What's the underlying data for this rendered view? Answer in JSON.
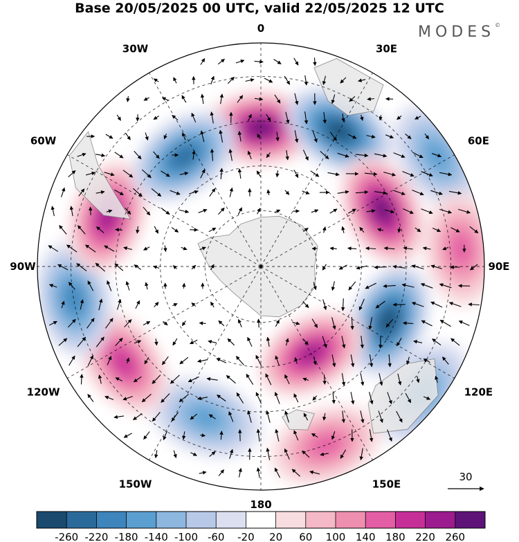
{
  "title": "Base 20/05/2025 00 UTC, valid 22/05/2025 12 UTC",
  "logo": {
    "text": "MODES",
    "mark": "©"
  },
  "map": {
    "projection": "south-polar-stereographic",
    "longitude_labels": [
      "0",
      "30E",
      "60E",
      "90E",
      "120E",
      "150E",
      "180",
      "150W",
      "120W",
      "90W",
      "60W",
      "30W"
    ],
    "anomaly_centers": [
      {
        "lon": 0,
        "ring": 0.62,
        "value": 240,
        "label": "positive"
      },
      {
        "lon": 30,
        "ring": 0.7,
        "value": -260,
        "label": "negative"
      },
      {
        "lon": 65,
        "ring": 0.6,
        "value": 240,
        "label": "positive"
      },
      {
        "lon": 58,
        "ring": 0.93,
        "value": -140,
        "label": "negative"
      },
      {
        "lon": 85,
        "ring": 0.9,
        "value": 140,
        "label": "positive"
      },
      {
        "lon": 113,
        "ring": 0.62,
        "value": -260,
        "label": "negative"
      },
      {
        "lon": 150,
        "ring": 0.45,
        "value": 200,
        "label": "positive"
      },
      {
        "lon": 128,
        "ring": 0.92,
        "value": -140,
        "label": "negative"
      },
      {
        "lon": 160,
        "ring": 0.85,
        "value": 140,
        "label": "positive"
      },
      {
        "lon": -160,
        "ring": 0.72,
        "value": -140,
        "label": "negative"
      },
      {
        "lon": -125,
        "ring": 0.75,
        "value": 160,
        "label": "positive"
      },
      {
        "lon": -100,
        "ring": 0.85,
        "value": -180,
        "label": "negative"
      },
      {
        "lon": -72,
        "ring": 0.72,
        "value": 200,
        "label": "positive"
      },
      {
        "lon": -35,
        "ring": 0.6,
        "value": -200,
        "label": "negative"
      }
    ],
    "vector_scale": {
      "label": "30"
    }
  },
  "colorbar": {
    "colors": [
      "#1a4a6e",
      "#2a6a9a",
      "#3d85bb",
      "#5b9ed0",
      "#8db7df",
      "#b8c9e8",
      "#dcdff0",
      "#ffffff",
      "#f8dde0",
      "#f5b8c6",
      "#ef8fb0",
      "#e35ea4",
      "#c72f98",
      "#9c1b8e",
      "#5e1378"
    ],
    "tick_labels": [
      "-260",
      "-220",
      "-180",
      "-140",
      "-100",
      "-60",
      "-20",
      "20",
      "60",
      "100",
      "140",
      "180",
      "220",
      "260"
    ]
  },
  "style": {
    "land_color": "#e8e8e8",
    "coast_color": "#777777"
  }
}
